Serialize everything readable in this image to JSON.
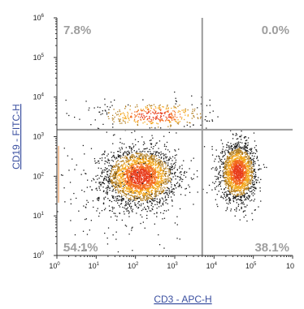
{
  "chart_data": {
    "type": "scatter",
    "plot_kind": "flow-cytometry-dot-plot",
    "xlabel": "CD3 - APC-H",
    "ylabel": "CD19 - FITC-H",
    "x_scale": "log",
    "y_scale": "log",
    "xlim": [
      1,
      1000000
    ],
    "ylim": [
      1,
      1000000
    ],
    "x_ticks": [
      "10^0",
      "10^1",
      "10^2",
      "10^3",
      "10^4",
      "10^5",
      "10^6"
    ],
    "y_ticks": [
      "10^0",
      "10^1",
      "10^2",
      "10^3",
      "10^4",
      "10^5",
      "10^6"
    ],
    "x_tick_labels": [
      {
        "base": "10",
        "exp": "0"
      },
      {
        "base": "10",
        "exp": "1"
      },
      {
        "base": "10",
        "exp": "2"
      },
      {
        "base": "10",
        "exp": "3"
      },
      {
        "base": "10",
        "exp": "4"
      },
      {
        "base": "10",
        "exp": "5"
      },
      {
        "base": "10",
        "exp": ""
      }
    ],
    "y_tick_labels": [
      {
        "base": "10",
        "exp": "0"
      },
      {
        "base": "10",
        "exp": "1"
      },
      {
        "base": "10",
        "exp": "2"
      },
      {
        "base": "10",
        "exp": "3"
      },
      {
        "base": "10",
        "exp": "4"
      },
      {
        "base": "10",
        "exp": "5"
      },
      {
        "base": "10",
        "exp": "6"
      }
    ],
    "gates": {
      "x_threshold": 5000,
      "y_threshold": 1500
    },
    "quadrants": [
      {
        "name": "upper-left",
        "label": "7.8%",
        "percent": 7.8
      },
      {
        "name": "upper-right",
        "label": "0.0%",
        "percent": 0.0
      },
      {
        "name": "lower-left",
        "label": "54.1%",
        "percent": 54.1
      },
      {
        "name": "lower-right",
        "label": "38.1%",
        "percent": 38.1
      }
    ],
    "populations": [
      {
        "name": "CD3-CD19- cluster",
        "center": [
          130,
          100
        ],
        "spread_decades": [
          0.45,
          0.35
        ],
        "weight": 0.5
      },
      {
        "name": "CD3+ T cells",
        "center": [
          40000,
          130
        ],
        "spread_decades": [
          0.22,
          0.35
        ],
        "weight": 0.38
      },
      {
        "name": "CD19+ B cells",
        "center": [
          300,
          3500
        ],
        "spread_decades": [
          0.7,
          0.18
        ],
        "weight": 0.08
      },
      {
        "name": "diffuse events",
        "center": [
          30,
          30
        ],
        "spread_decades": [
          0.9,
          0.7
        ],
        "weight": 0.04
      }
    ],
    "density_colormap": [
      "#1a1a1a",
      "#b07a1a",
      "#f2a51a",
      "#f36a1d",
      "#e83c1c"
    ],
    "grid": false
  },
  "colors": {
    "axis": "#333333",
    "gate_line": "#9a9a9a",
    "quadrant_text": "#9e9e9e",
    "axis_title": "#3a4fa0",
    "edge_accent": "#f0a060"
  }
}
